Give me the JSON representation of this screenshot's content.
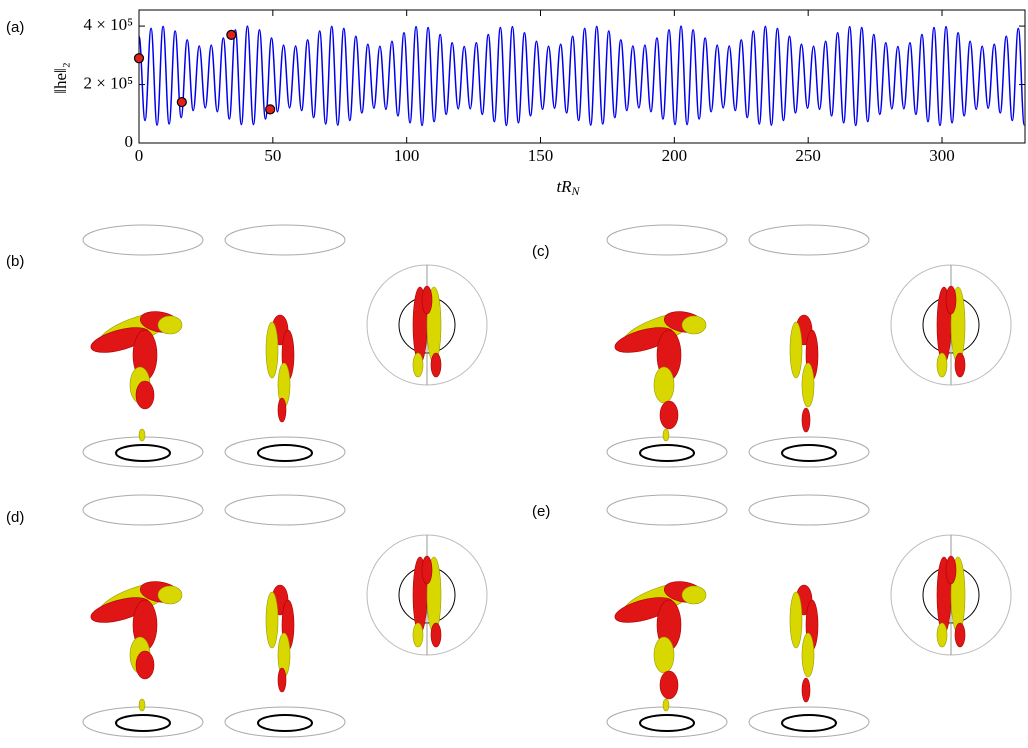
{
  "chart_data": {
    "type": "line",
    "panel_label": "(a)",
    "x_label": {
      "main": "tR",
      "sub": "N"
    },
    "y_label": "‖he‖₂",
    "xlim": [
      0,
      331
    ],
    "ylim": [
      0,
      455000
    ],
    "xticks": [
      0,
      50,
      100,
      150,
      200,
      250,
      300
    ],
    "yticks": [
      0,
      {
        "value": 200000,
        "label": "2 × 10⁵"
      },
      {
        "value": 400000,
        "label": "4 × 10⁵"
      }
    ],
    "x": [
      0,
      2.25,
      4.5,
      6.75,
      9,
      11.25,
      13.5,
      15.75,
      18,
      20.25,
      22.5,
      24.75,
      27,
      29.25,
      31.5,
      33.75,
      36,
      38.25,
      40.5,
      42.75,
      45,
      47.25,
      49.5,
      51.75,
      54,
      56.25,
      58.5,
      60.75,
      63,
      65.25,
      67.5,
      69.75,
      72,
      74.25,
      76.5,
      78.75,
      81,
      83.25,
      85.5,
      87.75,
      90,
      92.25,
      94.5,
      96.75,
      99,
      101.25,
      103.5,
      105.75,
      108,
      110.25,
      112.5,
      114.75,
      117,
      119.25,
      121.5,
      123.75,
      126,
      128.25,
      130.5,
      132.75,
      135,
      137.25,
      139.5,
      141.75,
      144,
      146.25,
      148.5,
      150.75,
      153,
      155.25,
      157.5,
      159.75,
      162,
      164.25,
      166.5,
      168.75,
      171,
      173.25,
      175.5,
      177.75,
      180,
      182.25,
      184.5,
      186.75,
      189,
      191.25,
      193.5,
      195.75,
      198,
      200.25,
      202.5,
      204.75,
      207,
      209.25,
      211.5,
      213.75,
      216,
      218.25,
      220.5,
      222.75,
      225,
      227.25,
      229.5,
      231.75,
      234,
      236.25,
      238.5,
      240.75,
      243,
      245.25,
      247.5,
      249.75,
      252,
      254.25,
      256.5,
      258.75,
      261,
      263.25,
      265.5,
      267.75,
      270,
      272.25,
      274.5,
      276.75,
      279,
      281.25,
      283.5,
      285.75,
      288,
      290.25,
      292.5,
      294.75,
      297,
      299.25,
      301.5,
      303.75,
      306,
      308.25,
      310.5,
      312.75,
      315,
      317.25,
      319.5,
      321.75,
      324,
      326.25,
      328.5,
      330.75
    ],
    "series": [
      {
        "color": "#0000ee",
        "values": [
          365000,
          77000,
          392000,
          61000,
          399000,
          65000,
          383000,
          87000,
          353000,
          111000,
          332000,
          120000,
          335000,
          107000,
          359000,
          82000,
          387000,
          63000,
          400000,
          63000,
          387000,
          82000,
          359000,
          107000,
          335000,
          120000,
          332000,
          111000,
          353000,
          87000,
          383000,
          65000,
          399000,
          61000,
          392000,
          77000,
          365000,
          103000,
          338000,
          119000,
          331000,
          115000,
          348000,
          93000,
          377000,
          69000,
          398000,
          60000,
          395000,
          73000,
          371000,
          98000,
          343000,
          117000,
          330000,
          117000,
          343000,
          98000,
          371000,
          73000,
          395000,
          60000,
          398000,
          69000,
          377000,
          93000,
          348000,
          115000,
          331000,
          119000,
          338000,
          103000,
          365000,
          77000,
          392000,
          61000,
          399000,
          65000,
          383000,
          87000,
          353000,
          111000,
          332000,
          120000,
          335000,
          107000,
          359000,
          82000,
          387000,
          63000,
          400000,
          63000,
          387000,
          82000,
          359000,
          107000,
          335000,
          120000,
          332000,
          111000,
          353000,
          87000,
          383000,
          65000,
          399000,
          61000,
          392000,
          77000,
          365000,
          103000,
          338000,
          119000,
          331000,
          115000,
          348000,
          93000,
          377000,
          69000,
          398000,
          60000,
          395000,
          73000,
          371000,
          98000,
          343000,
          117000,
          330000,
          117000,
          343000,
          98000,
          371000,
          73000,
          395000,
          60000,
          398000,
          69000,
          377000,
          93000,
          348000,
          115000,
          331000,
          119000,
          338000,
          103000,
          365000,
          77000,
          392000,
          61000
        ]
      }
    ],
    "markers": {
      "color": "#e0201b",
      "x": [
        0,
        16,
        34.5,
        49
      ],
      "values": [
        290000,
        140000,
        370000,
        115000
      ]
    }
  },
  "panel_labels": [
    "(b)",
    "(c)",
    "(d)",
    "(e)"
  ]
}
